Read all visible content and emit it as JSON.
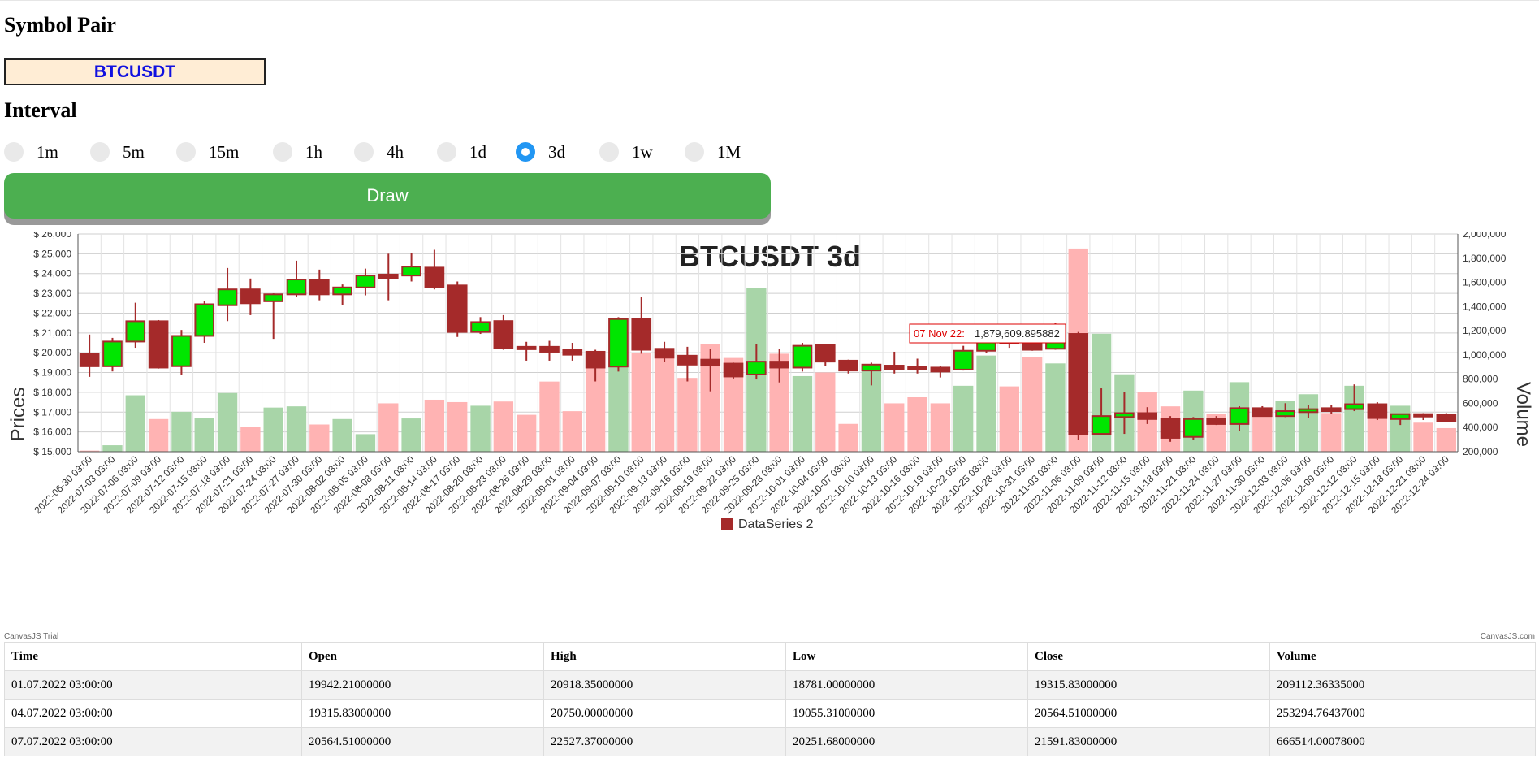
{
  "symbol": {
    "heading": "Symbol Pair",
    "value": "BTCUSDT"
  },
  "interval": {
    "heading": "Interval",
    "options": [
      "1m",
      "5m",
      "15m",
      "1h",
      "4h",
      "1d",
      "3d",
      "1w",
      "1M"
    ],
    "selected": "3d"
  },
  "draw_label": "Draw",
  "chart_data": {
    "type": "candlestick",
    "title": "BTCUSDT 3d",
    "ylabel": "Prices",
    "y2label": "Volume",
    "ylim": [
      15000,
      26000
    ],
    "y2lim": [
      200000,
      2000000
    ],
    "y_ticks": [
      "$ 15,000",
      "$ 16,000",
      "$ 17,000",
      "$ 18,000",
      "$ 19,000",
      "$ 20,000",
      "$ 21,000",
      "$ 22,000",
      "$ 23,000",
      "$ 24,000",
      "$ 25,000",
      "$ 26,000"
    ],
    "y2_ticks": [
      "200,000",
      "400,000",
      "600,000",
      "800,000",
      "1,000,000",
      "1,200,000",
      "1,400,000",
      "1,600,000",
      "1,800,000",
      "2,000,000"
    ],
    "x_labels": [
      "2022-06-30 03:00",
      "2022-07-03 03:00",
      "2022-07-06 03:00",
      "2022-07-09 03:00",
      "2022-07-12 03:00",
      "2022-07-15 03:00",
      "2022-07-18 03:00",
      "2022-07-21 03:00",
      "2022-07-24 03:00",
      "2022-07-27 03:00",
      "2022-07-30 03:00",
      "2022-08-02 03:00",
      "2022-08-05 03:00",
      "2022-08-08 03:00",
      "2022-08-11 03:00",
      "2022-08-14 03:00",
      "2022-08-17 03:00",
      "2022-08-20 03:00",
      "2022-08-23 03:00",
      "2022-08-26 03:00",
      "2022-08-29 03:00",
      "2022-09-01 03:00",
      "2022-09-04 03:00",
      "2022-09-07 03:00",
      "2022-09-10 03:00",
      "2022-09-13 03:00",
      "2022-09-16 03:00",
      "2022-09-19 03:00",
      "2022-09-22 03:00",
      "2022-09-25 03:00",
      "2022-09-28 03:00",
      "2022-10-01 03:00",
      "2022-10-04 03:00",
      "2022-10-07 03:00",
      "2022-10-10 03:00",
      "2022-10-13 03:00",
      "2022-10-16 03:00",
      "2022-10-19 03:00",
      "2022-10-22 03:00",
      "2022-10-25 03:00",
      "2022-10-28 03:00",
      "2022-10-31 03:00",
      "2022-11-03 03:00",
      "2022-11-06 03:00",
      "2022-11-09 03:00",
      "2022-11-12 03:00",
      "2022-11-15 03:00",
      "2022-11-18 03:00",
      "2022-11-21 03:00",
      "2022-11-24 03:00",
      "2022-11-27 03:00",
      "2022-11-30 03:00",
      "2022-12-03 03:00",
      "2022-12-06 03:00",
      "2022-12-09 03:00",
      "2022-12-12 03:00",
      "2022-12-15 03:00",
      "2022-12-18 03:00",
      "2022-12-21 03:00",
      "2022-12-24 03:00"
    ],
    "candles": [
      {
        "o": 19942,
        "h": 20918,
        "l": 18781,
        "c": 19316,
        "v": 209112
      },
      {
        "o": 19316,
        "h": 20750,
        "l": 19055,
        "c": 20565,
        "v": 253295
      },
      {
        "o": 20565,
        "h": 22527,
        "l": 20252,
        "c": 21592,
        "v": 666514
      },
      {
        "o": 21592,
        "h": 21650,
        "l": 19200,
        "c": 19250,
        "v": 470000
      },
      {
        "o": 19320,
        "h": 21150,
        "l": 18900,
        "c": 20850,
        "v": 530000
      },
      {
        "o": 20850,
        "h": 22600,
        "l": 20500,
        "c": 22450,
        "v": 480000
      },
      {
        "o": 22400,
        "h": 24280,
        "l": 21600,
        "c": 23200,
        "v": 685000
      },
      {
        "o": 23200,
        "h": 23750,
        "l": 21900,
        "c": 22500,
        "v": 405000
      },
      {
        "o": 22600,
        "h": 23000,
        "l": 20700,
        "c": 22950,
        "v": 565000
      },
      {
        "o": 22950,
        "h": 24650,
        "l": 22800,
        "c": 23700,
        "v": 575000
      },
      {
        "o": 23700,
        "h": 24200,
        "l": 22650,
        "c": 22950,
        "v": 425000
      },
      {
        "o": 22950,
        "h": 23450,
        "l": 22400,
        "c": 23300,
        "v": 470000
      },
      {
        "o": 23300,
        "h": 24250,
        "l": 22900,
        "c": 23900,
        "v": 345000
      },
      {
        "o": 23950,
        "h": 25000,
        "l": 22650,
        "c": 23750,
        "v": 600000
      },
      {
        "o": 23900,
        "h": 25050,
        "l": 23600,
        "c": 24350,
        "v": 475000
      },
      {
        "o": 24300,
        "h": 25200,
        "l": 23200,
        "c": 23300,
        "v": 630000
      },
      {
        "o": 23400,
        "h": 23600,
        "l": 20800,
        "c": 21050,
        "v": 610000
      },
      {
        "o": 21050,
        "h": 21800,
        "l": 20950,
        "c": 21550,
        "v": 580000
      },
      {
        "o": 21600,
        "h": 21900,
        "l": 20150,
        "c": 20250,
        "v": 615000
      },
      {
        "o": 20300,
        "h": 20550,
        "l": 19600,
        "c": 20200,
        "v": 505000
      },
      {
        "o": 20300,
        "h": 20600,
        "l": 19600,
        "c": 20050,
        "v": 780000
      },
      {
        "o": 20150,
        "h": 20500,
        "l": 19600,
        "c": 19900,
        "v": 535000
      },
      {
        "o": 20050,
        "h": 20150,
        "l": 18550,
        "c": 19250,
        "v": 985000
      },
      {
        "o": 19300,
        "h": 21800,
        "l": 19050,
        "c": 21700,
        "v": 1175000
      },
      {
        "o": 21700,
        "h": 22800,
        "l": 19950,
        "c": 20150,
        "v": 1020000
      },
      {
        "o": 20200,
        "h": 20550,
        "l": 19550,
        "c": 19750,
        "v": 975000
      },
      {
        "o": 19850,
        "h": 20300,
        "l": 18550,
        "c": 19400,
        "v": 810000
      },
      {
        "o": 19650,
        "h": 20200,
        "l": 18050,
        "c": 19350,
        "v": 1090000
      },
      {
        "o": 19450,
        "h": 19500,
        "l": 18700,
        "c": 18800,
        "v": 975000
      },
      {
        "o": 18900,
        "h": 20450,
        "l": 18650,
        "c": 19550,
        "v": 1555000
      },
      {
        "o": 19550,
        "h": 20200,
        "l": 18500,
        "c": 19250,
        "v": 1010000
      },
      {
        "o": 19250,
        "h": 20500,
        "l": 19050,
        "c": 20350,
        "v": 825000
      },
      {
        "o": 20400,
        "h": 20450,
        "l": 19350,
        "c": 19550,
        "v": 855000
      },
      {
        "o": 19600,
        "h": 19650,
        "l": 18950,
        "c": 19100,
        "v": 430000
      },
      {
        "o": 19100,
        "h": 19500,
        "l": 18350,
        "c": 19400,
        "v": 875000
      },
      {
        "o": 19350,
        "h": 20050,
        "l": 18950,
        "c": 19150,
        "v": 600000
      },
      {
        "o": 19300,
        "h": 19700,
        "l": 18950,
        "c": 19150,
        "v": 650000
      },
      {
        "o": 19250,
        "h": 19350,
        "l": 18750,
        "c": 19050,
        "v": 600000
      },
      {
        "o": 19150,
        "h": 20350,
        "l": 19100,
        "c": 20100,
        "v": 745000
      },
      {
        "o": 20100,
        "h": 21050,
        "l": 20000,
        "c": 20600,
        "v": 995000
      },
      {
        "o": 20650,
        "h": 21100,
        "l": 20250,
        "c": 20500,
        "v": 740000
      },
      {
        "o": 20550,
        "h": 20800,
        "l": 20100,
        "c": 20150,
        "v": 980000
      },
      {
        "o": 20200,
        "h": 21500,
        "l": 20150,
        "c": 20950,
        "v": 930000
      },
      {
        "o": 20950,
        "h": 21050,
        "l": 15600,
        "c": 15900,
        "v": 1879610
      },
      {
        "o": 15900,
        "h": 18200,
        "l": 15900,
        "c": 16800,
        "v": 1175000
      },
      {
        "o": 16750,
        "h": 18000,
        "l": 15900,
        "c": 16950,
        "v": 840000
      },
      {
        "o": 16950,
        "h": 17250,
        "l": 16400,
        "c": 16650,
        "v": 690000
      },
      {
        "o": 16650,
        "h": 16800,
        "l": 15500,
        "c": 15700,
        "v": 575000
      },
      {
        "o": 15750,
        "h": 16750,
        "l": 15600,
        "c": 16650,
        "v": 705000
      },
      {
        "o": 16650,
        "h": 16800,
        "l": 16350,
        "c": 16400,
        "v": 510000
      },
      {
        "o": 16400,
        "h": 17300,
        "l": 16050,
        "c": 17200,
        "v": 775000
      },
      {
        "o": 17200,
        "h": 17300,
        "l": 16800,
        "c": 16800,
        "v": 545000
      },
      {
        "o": 16800,
        "h": 17450,
        "l": 16750,
        "c": 17050,
        "v": 620000
      },
      {
        "o": 17000,
        "h": 17350,
        "l": 16700,
        "c": 17150,
        "v": 675000
      },
      {
        "o": 17200,
        "h": 17350,
        "l": 16900,
        "c": 17050,
        "v": 520000
      },
      {
        "o": 17150,
        "h": 18400,
        "l": 17050,
        "c": 17400,
        "v": 745000
      },
      {
        "o": 17400,
        "h": 17500,
        "l": 16600,
        "c": 16700,
        "v": 530000
      },
      {
        "o": 16650,
        "h": 16900,
        "l": 16350,
        "c": 16900,
        "v": 580000
      },
      {
        "o": 16900,
        "h": 16950,
        "l": 16600,
        "c": 16800,
        "v": 440000
      },
      {
        "o": 16850,
        "h": 16950,
        "l": 16500,
        "c": 16550,
        "v": 395000
      }
    ],
    "tooltip": {
      "label": "07 Nov 22:",
      "value": "1,879,609.895882"
    },
    "legend": "DataSeries 2",
    "legend_color": "#a52a2a",
    "up_color": "#00e600",
    "down_color": "#a52a2a",
    "vol_up_color": "#a8d5a8",
    "vol_down_color": "#ffb3b3",
    "credit_left": "CanvasJS Trial",
    "credit_right": "CanvasJS.com"
  },
  "table": {
    "headers": [
      "Time",
      "Open",
      "High",
      "Low",
      "Close",
      "Volume"
    ],
    "rows": [
      [
        "01.07.2022 03:00:00",
        "19942.21000000",
        "20918.35000000",
        "18781.00000000",
        "19315.83000000",
        "209112.36335000"
      ],
      [
        "04.07.2022 03:00:00",
        "19315.83000000",
        "20750.00000000",
        "19055.31000000",
        "20564.51000000",
        "253294.76437000"
      ],
      [
        "07.07.2022 03:00:00",
        "20564.51000000",
        "22527.37000000",
        "20251.68000000",
        "21591.83000000",
        "666514.00078000"
      ]
    ]
  }
}
